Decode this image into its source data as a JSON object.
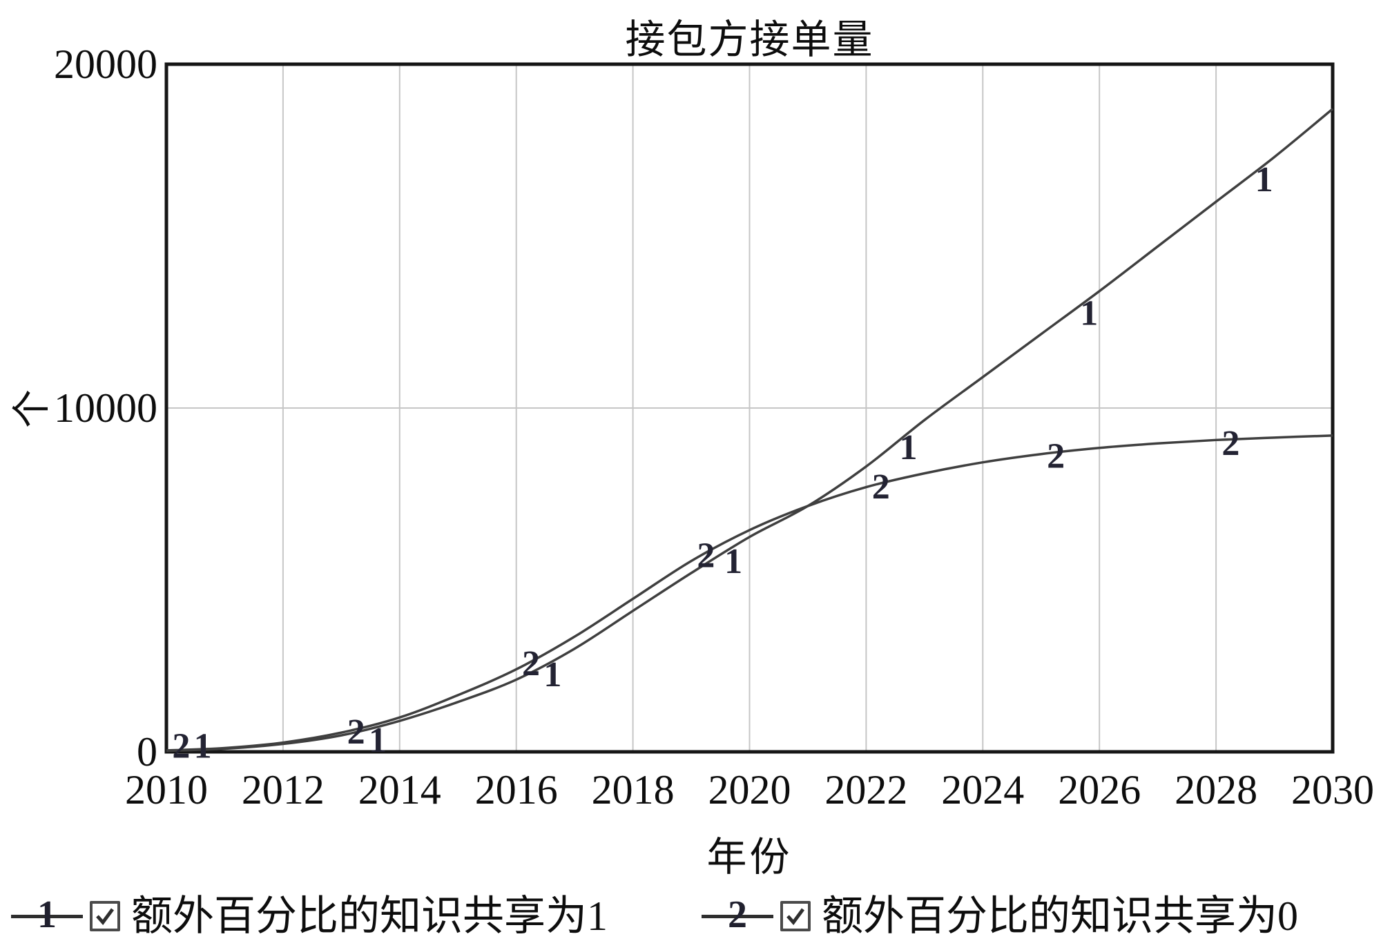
{
  "window": {
    "background": "#ffffff"
  },
  "chart_data": {
    "type": "line",
    "title": "接包方接单量",
    "xlabel": "年份",
    "ylabel": "个",
    "xlim": [
      2010,
      2030
    ],
    "ylim": [
      0,
      20000
    ],
    "x_ticks": [
      2010,
      2012,
      2014,
      2016,
      2018,
      2020,
      2022,
      2024,
      2026,
      2028,
      2030
    ],
    "y_ticks": [
      0,
      10000,
      20000
    ],
    "grid": true,
    "legend_position": "bottom",
    "x": [
      2010,
      2011,
      2012,
      2013,
      2014,
      2015,
      2016,
      2017,
      2018,
      2019,
      2020,
      2021,
      2022,
      2023,
      2024,
      2025,
      2026,
      2027,
      2028,
      2029,
      2030
    ],
    "series": [
      {
        "mark": "1",
        "name": "额外百分比的知识共享为1",
        "values": [
          30,
          90,
          230,
          480,
          900,
          1450,
          2100,
          3000,
          4100,
          5200,
          6250,
          7150,
          8300,
          9650,
          10900,
          12150,
          13400,
          14700,
          16000,
          17300,
          18700
        ],
        "label_years": [
          2010.6,
          2013.6,
          2016.6,
          2019.7,
          2022.7,
          2025.8,
          2028.8
        ],
        "label_offset": [
          2,
          20
        ]
      },
      {
        "mark": "2",
        "name": "额外百分比的知识共享为0",
        "values": [
          40,
          110,
          270,
          560,
          1000,
          1650,
          2400,
          3350,
          4450,
          5550,
          6450,
          7150,
          7700,
          8100,
          8420,
          8660,
          8840,
          8970,
          9070,
          9140,
          9200
        ],
        "label_years": [
          2010.3,
          2013.3,
          2016.3,
          2019.3,
          2022.3,
          2025.3,
          2028.3
        ],
        "label_offset": [
          -4,
          6
        ]
      }
    ]
  },
  "legend": {
    "items": [
      {
        "mark": "1",
        "label": "额外百分比的知识共享为1",
        "checked": true
      },
      {
        "mark": "2",
        "label": "额外百分比的知识共享为0",
        "checked": true
      }
    ]
  },
  "colors": {
    "curve": "#3f3f3f",
    "curve_label": "#232333",
    "gridline": "#c6c6c6",
    "frame": "#161616",
    "tick_text": "#0d0d0d",
    "check": "#2e2e2e"
  }
}
